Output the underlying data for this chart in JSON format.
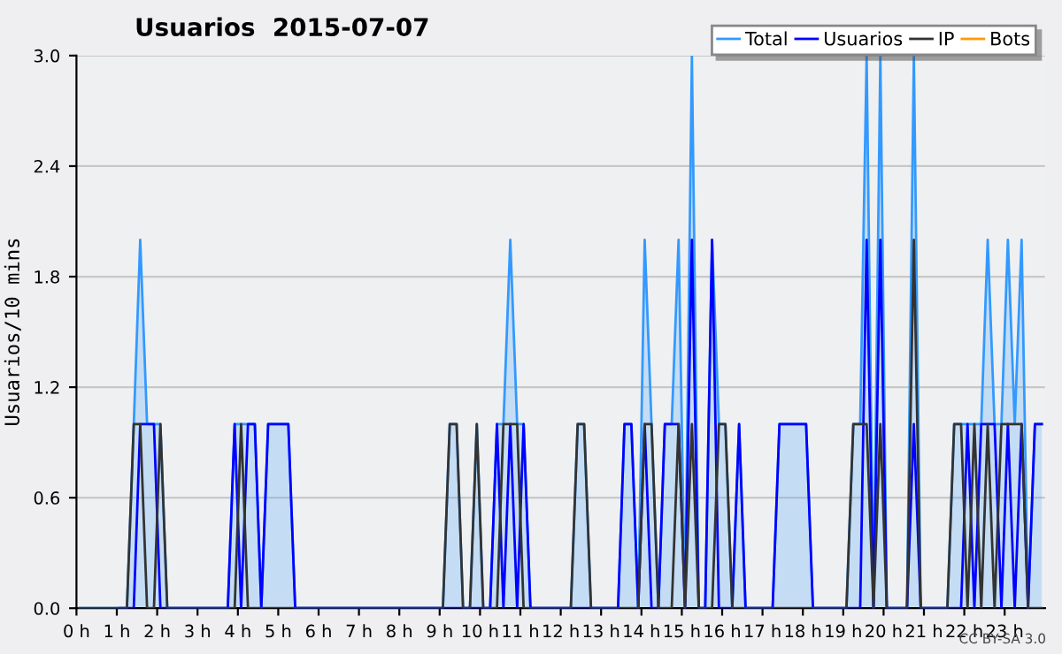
{
  "chart_data": {
    "type": "line",
    "title": "Usuarios  2015-07-07",
    "ylabel": "Usuarios/10 mins",
    "annotations": [
      "CC BY-SA 3.0"
    ],
    "x": [
      0.08,
      0.25,
      0.42,
      0.58,
      0.75,
      0.92,
      1.08,
      1.25,
      1.42,
      1.58,
      1.75,
      1.92,
      2.08,
      2.25,
      2.42,
      2.58,
      2.75,
      2.92,
      3.08,
      3.25,
      3.42,
      3.58,
      3.75,
      3.92,
      4.08,
      4.25,
      4.42,
      4.58,
      4.75,
      4.92,
      5.08,
      5.25,
      5.42,
      5.58,
      5.75,
      5.92,
      6.08,
      6.25,
      6.42,
      6.58,
      6.75,
      6.92,
      7.08,
      7.25,
      7.42,
      7.58,
      7.75,
      7.92,
      8.08,
      8.25,
      8.42,
      8.58,
      8.75,
      8.92,
      9.08,
      9.25,
      9.42,
      9.58,
      9.75,
      9.92,
      10.08,
      10.25,
      10.42,
      10.58,
      10.75,
      10.92,
      11.08,
      11.25,
      11.42,
      11.58,
      11.75,
      11.92,
      12.08,
      12.25,
      12.42,
      12.58,
      12.75,
      12.92,
      13.08,
      13.25,
      13.42,
      13.58,
      13.75,
      13.92,
      14.08,
      14.25,
      14.42,
      14.58,
      14.75,
      14.92,
      15.08,
      15.25,
      15.42,
      15.58,
      15.75,
      15.92,
      16.08,
      16.25,
      16.42,
      16.58,
      16.75,
      16.92,
      17.08,
      17.25,
      17.42,
      17.58,
      17.75,
      17.92,
      18.08,
      18.25,
      18.42,
      18.58,
      18.75,
      18.92,
      19.08,
      19.25,
      19.42,
      19.58,
      19.75,
      19.92,
      20.08,
      20.25,
      20.42,
      20.58,
      20.75,
      20.92,
      21.08,
      21.25,
      21.42,
      21.58,
      21.75,
      21.92,
      22.08,
      22.25,
      22.42,
      22.58,
      22.75,
      22.92,
      23.08,
      23.25,
      23.42,
      23.58,
      23.75,
      23.92
    ],
    "series": [
      {
        "name": "Total",
        "type": "area",
        "color": "#3399ff",
        "values": [
          0,
          0,
          0,
          0,
          0,
          0,
          0,
          0,
          1,
          2,
          1,
          1,
          1,
          0,
          0,
          0,
          0,
          0,
          0,
          0,
          0,
          0,
          0,
          1,
          1,
          1,
          1,
          0,
          1,
          1,
          1,
          1,
          0,
          0,
          0,
          0,
          0,
          0,
          0,
          0,
          0,
          0,
          0,
          0,
          0,
          0,
          0,
          0,
          0,
          0,
          0,
          0,
          0,
          0,
          0,
          1,
          1,
          0,
          0,
          1,
          0,
          0,
          1,
          1,
          2,
          1,
          1,
          0,
          0,
          0,
          0,
          0,
          0,
          0,
          1,
          1,
          0,
          0,
          0,
          0,
          0,
          1,
          1,
          0,
          2,
          1,
          0,
          1,
          1,
          2,
          0,
          3,
          0,
          0,
          2,
          1,
          1,
          0,
          1,
          0,
          0,
          0,
          0,
          0,
          1,
          1,
          1,
          1,
          1,
          0,
          0,
          0,
          0,
          0,
          0,
          1,
          1,
          3,
          0,
          3,
          0,
          0,
          0,
          0,
          3,
          0,
          0,
          0,
          0,
          0,
          1,
          1,
          1,
          1,
          1,
          2,
          1,
          1,
          2,
          1,
          2,
          0,
          1,
          1
        ]
      },
      {
        "name": "Usuarios",
        "color": "#0000ff",
        "values": [
          null,
          null,
          null,
          null,
          null,
          null,
          0,
          0,
          0,
          1,
          1,
          1,
          0,
          0,
          0,
          0,
          0,
          0,
          0,
          0,
          0,
          0,
          0,
          1,
          0,
          1,
          1,
          0,
          1,
          1,
          1,
          1,
          0,
          0,
          0,
          0,
          0,
          0,
          0,
          0,
          0,
          0,
          0,
          0,
          0,
          0,
          0,
          0,
          0,
          0,
          0,
          0,
          0,
          0,
          0,
          0,
          0,
          0,
          0,
          0,
          0,
          0,
          1,
          0,
          1,
          0,
          1,
          0,
          0,
          0,
          0,
          0,
          0,
          0,
          0,
          0,
          0,
          0,
          0,
          0,
          0,
          1,
          1,
          0,
          1,
          0,
          0,
          1,
          1,
          1,
          0,
          2,
          0,
          0,
          2,
          0,
          0,
          0,
          1,
          0,
          0,
          0,
          0,
          0,
          1,
          1,
          1,
          1,
          1,
          0,
          0,
          0,
          0,
          0,
          0,
          0,
          0,
          2,
          0,
          2,
          0,
          0,
          0,
          0,
          1,
          0,
          0,
          0,
          0,
          0,
          0,
          0,
          1,
          0,
          1,
          1,
          1,
          0,
          1,
          0,
          1,
          0,
          1,
          1
        ]
      },
      {
        "name": "IP",
        "color": "#333333",
        "values": [
          0,
          0,
          0,
          0,
          0,
          0,
          0,
          0,
          1,
          1,
          0,
          0,
          1,
          0,
          0,
          0,
          0,
          0,
          0,
          0,
          0,
          0,
          0,
          0,
          1,
          0,
          0,
          0,
          0,
          0,
          0,
          0,
          0,
          0,
          0,
          0,
          0,
          0,
          0,
          0,
          0,
          0,
          0,
          0,
          0,
          0,
          0,
          0,
          0,
          0,
          0,
          0,
          0,
          0,
          0,
          1,
          1,
          0,
          0,
          1,
          0,
          0,
          0,
          1,
          1,
          1,
          0,
          0,
          0,
          0,
          0,
          0,
          0,
          0,
          1,
          1,
          0,
          0,
          0,
          0,
          0,
          0,
          0,
          0,
          1,
          1,
          0,
          0,
          0,
          1,
          0,
          1,
          0,
          0,
          0,
          1,
          1,
          0,
          0,
          0,
          0,
          0,
          0,
          0,
          0,
          0,
          0,
          0,
          0,
          0,
          0,
          0,
          0,
          0,
          0,
          1,
          1,
          1,
          0,
          1,
          0,
          0,
          0,
          0,
          2,
          0,
          0,
          0,
          0,
          0,
          1,
          1,
          0,
          1,
          0,
          1,
          0,
          1,
          1,
          1,
          1,
          0,
          0,
          0
        ]
      },
      {
        "name": "Bots",
        "color": "#ff9900",
        "values": [
          null,
          null,
          null,
          null,
          null,
          null,
          null,
          null,
          null,
          null,
          null,
          null,
          null,
          null,
          null,
          null,
          null,
          null,
          null,
          null,
          null,
          null,
          null,
          null,
          null,
          null,
          null,
          null,
          null,
          null,
          null,
          null,
          null,
          null,
          null,
          null,
          null,
          null,
          null,
          null,
          null,
          null,
          null,
          null,
          null,
          null,
          null,
          null,
          null,
          null,
          null,
          null,
          null,
          null,
          null,
          null,
          null,
          null,
          null,
          null,
          null,
          null,
          null,
          null,
          null,
          null,
          null,
          null,
          null,
          null,
          null,
          null,
          null,
          null,
          null,
          null,
          null,
          null,
          null,
          null,
          null,
          null,
          null,
          null,
          null,
          null,
          null,
          null,
          null,
          null,
          null,
          null,
          null,
          null,
          null,
          null,
          null,
          null,
          null,
          null,
          null,
          null,
          null,
          null,
          null,
          null,
          null,
          null,
          null,
          null,
          null,
          null,
          null,
          null,
          null,
          null,
          null,
          null,
          null,
          null,
          null,
          null,
          null,
          null,
          null,
          null,
          null,
          null,
          null,
          null,
          null,
          null,
          null,
          null,
          null,
          null,
          null,
          null,
          null,
          null,
          null,
          null,
          null,
          null
        ]
      }
    ],
    "xlim": [
      0,
      24
    ],
    "xticks": [
      {
        "value": 0,
        "label": "0 h"
      },
      {
        "value": 1,
        "label": "1 h"
      },
      {
        "value": 2,
        "label": "2 h"
      },
      {
        "value": 3,
        "label": "3 h"
      },
      {
        "value": 4,
        "label": "4 h"
      },
      {
        "value": 5,
        "label": "5 h"
      },
      {
        "value": 6,
        "label": "6 h"
      },
      {
        "value": 7,
        "label": "7 h"
      },
      {
        "value": 8,
        "label": "8 h"
      },
      {
        "value": 9,
        "label": "9 h"
      },
      {
        "value": 10,
        "label": "10 h"
      },
      {
        "value": 11,
        "label": "11 h"
      },
      {
        "value": 12,
        "label": "12 h"
      },
      {
        "value": 13,
        "label": "13 h"
      },
      {
        "value": 14,
        "label": "14 h"
      },
      {
        "value": 15,
        "label": "15 h"
      },
      {
        "value": 16,
        "label": "16 h"
      },
      {
        "value": 17,
        "label": "17 h"
      },
      {
        "value": 18,
        "label": "18 h"
      },
      {
        "value": 19,
        "label": "19 h"
      },
      {
        "value": 20,
        "label": "20 h"
      },
      {
        "value": 21,
        "label": "21 h"
      },
      {
        "value": 22,
        "label": "22 h"
      },
      {
        "value": 23,
        "label": "23 h"
      }
    ],
    "ylim": [
      0,
      3
    ],
    "yticks": [
      {
        "value": 0,
        "label": "0.0"
      },
      {
        "value": 0.6,
        "label": "0.6"
      },
      {
        "value": 1.2,
        "label": "1.2"
      },
      {
        "value": 1.8,
        "label": "1.8"
      },
      {
        "value": 2.4,
        "label": "2.4"
      },
      {
        "value": 3,
        "label": "3.0"
      }
    ],
    "grid": "y",
    "legend": "top right",
    "marker": "none",
    "line_style": "solid"
  }
}
